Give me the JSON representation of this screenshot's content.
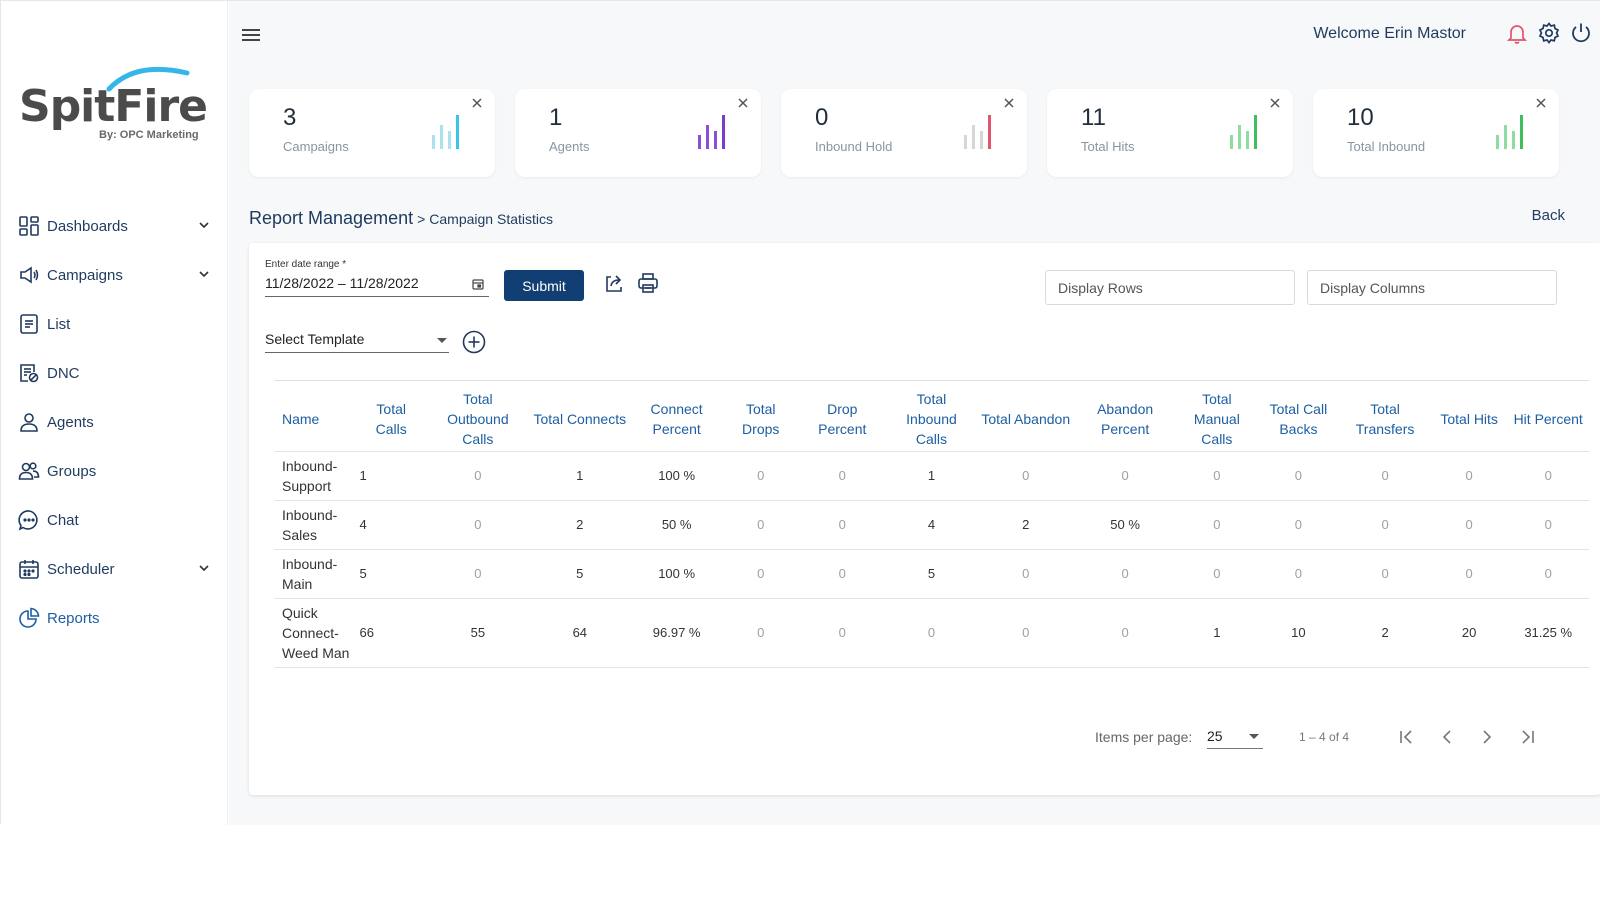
{
  "logo": {
    "word": "SpitFire",
    "sub": "By: OPC Marketing"
  },
  "sidebar": {
    "items": [
      {
        "label": "Dashboards",
        "icon": "dashboard-icon",
        "expandable": true
      },
      {
        "label": "Campaigns",
        "icon": "megaphone-icon",
        "expandable": true
      },
      {
        "label": "List",
        "icon": "list-icon",
        "expandable": false
      },
      {
        "label": "DNC",
        "icon": "dnc-icon",
        "expandable": false
      },
      {
        "label": "Agents",
        "icon": "user-icon",
        "expandable": false
      },
      {
        "label": "Groups",
        "icon": "group-icon",
        "expandable": false
      },
      {
        "label": "Chat",
        "icon": "chat-icon",
        "expandable": false
      },
      {
        "label": "Scheduler",
        "icon": "calendar-icon",
        "expandable": true
      },
      {
        "label": "Reports",
        "icon": "pie-chart-icon",
        "expandable": false,
        "active": true
      }
    ]
  },
  "header": {
    "welcome": "Welcome Erin Mastor"
  },
  "stats": [
    {
      "value": "3",
      "label": "Campaigns",
      "color": "#7fd3e6"
    },
    {
      "value": "1",
      "label": "Agents",
      "color": "#8b4fd8"
    },
    {
      "value": "0",
      "label": "Inbound Hold",
      "color": "#e0566e"
    },
    {
      "value": "11",
      "label": "Total Hits",
      "color": "#4cc96a"
    },
    {
      "value": "10",
      "label": "Total Inbound",
      "color": "#4cc96a"
    }
  ],
  "breadcrumb": {
    "root": "Report Management",
    "sep": ">",
    "current": "Campaign Statistics"
  },
  "back_label": "Back",
  "filters": {
    "date_label": "Enter date range *",
    "date_value": "11/28/2022 – 11/28/2022",
    "submit_label": "Submit",
    "display_rows_placeholder": "Display Rows",
    "display_columns_placeholder": "Display Columns",
    "template_label": "Select Template"
  },
  "table": {
    "headers": [
      "Name",
      "Total Calls",
      "Total Outbound Calls",
      "Total Connects",
      "Connect Percent",
      "Total Drops",
      "Drop Percent",
      "Total Inbound Calls",
      "Total Abandon",
      "Abandon Percent",
      "Total Manual Calls",
      "Total Call Backs",
      "Total Transfers",
      "Total Hits",
      "Hit Percent"
    ],
    "rows": [
      [
        "Inbound-Support",
        "1",
        "0",
        "1",
        "100 %",
        "0",
        "0",
        "1",
        "0",
        "0",
        "0",
        "0",
        "0",
        "0",
        "0"
      ],
      [
        "Inbound-Sales",
        "4",
        "0",
        "2",
        "50 %",
        "0",
        "0",
        "4",
        "2",
        "50 %",
        "0",
        "0",
        "0",
        "0",
        "0"
      ],
      [
        "Inbound-Main",
        "5",
        "0",
        "5",
        "100 %",
        "0",
        "0",
        "5",
        "0",
        "0",
        "0",
        "0",
        "0",
        "0",
        "0"
      ],
      [
        "Quick Connect-Weed Man",
        "66",
        "55",
        "64",
        "96.97 %",
        "0",
        "0",
        "0",
        "0",
        "0",
        "1",
        "10",
        "2",
        "20",
        "31.25 %"
      ]
    ]
  },
  "pager": {
    "items_per_page_label": "Items per page:",
    "items_per_page": "25",
    "range": "1 – 4 of 4"
  }
}
